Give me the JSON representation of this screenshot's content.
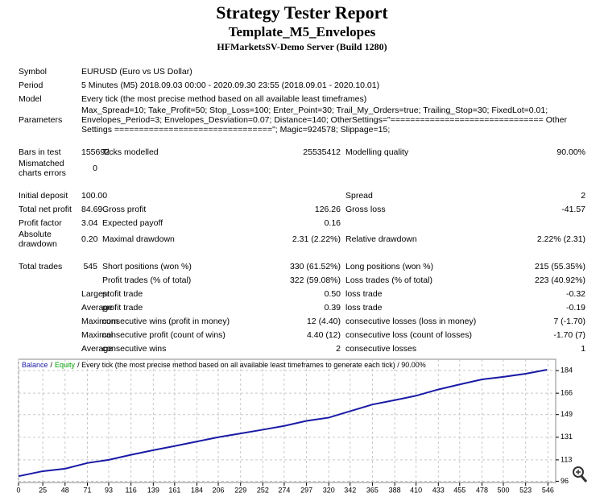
{
  "header": {
    "title": "Strategy Tester Report",
    "subtitle": "Template_M5_Envelopes",
    "server": "HFMarketsSV-Demo Server (Build 1280)"
  },
  "table": {
    "sections": [
      [
        [
          "Symbol",
          "EURUSD (Euro vs US Dollar)"
        ],
        [
          "Period",
          "5 Minutes (M5) 2018.09.03 00:00 - 2020.09.30 23:55 (2018.09.01 - 2020.10.01)"
        ],
        [
          "Model",
          "Every tick (the most precise method based on all available least timeframes)"
        ],
        [
          "Parameters",
          "Max_Spread=10; Take_Profit=50; Stop_Loss=100; Enter_Point=30; Trail_My_Orders=true; Trailing_Stop=30; FixedLot=0.01; Envelopes_Period=3; Envelopes_Desviation=0.07; Distance=140; OtherSettings=\"=============================== Other Settings ================================\"; Magic=924578; Slippage=15;"
        ]
      ],
      [
        [
          "Bars in test",
          "155692",
          "Ticks modelled",
          "25535412",
          "Modelling quality",
          "90.00%"
        ],
        [
          "Mismatched charts errors",
          "0",
          null,
          null,
          null,
          null
        ]
      ],
      [
        [
          "Initial deposit",
          "100.00",
          null,
          null,
          "Spread",
          "2"
        ],
        [
          "Total net profit",
          "84.69",
          "Gross profit",
          "126.26",
          "Gross loss",
          "-41.57"
        ],
        [
          "Profit factor",
          "3.04",
          "Expected payoff",
          "0.16",
          null,
          null
        ],
        [
          "Absolute drawdown",
          "0.20",
          "Maximal drawdown",
          "2.31 (2.22%)",
          "Relative drawdown",
          "2.22% (2.31)"
        ]
      ],
      [
        [
          "Total trades",
          "545",
          "Short positions (won %)",
          "330 (61.52%)",
          "Long positions (won %)",
          "215 (55.35%)"
        ],
        [
          null,
          null,
          "Profit trades (% of total)",
          "322 (59.08%)",
          "Loss trades (% of total)",
          "223 (40.92%)"
        ],
        [
          null,
          "Largest",
          "profit trade",
          "0.50",
          "loss trade",
          "-0.32"
        ],
        [
          null,
          "Average",
          "profit trade",
          "0.39",
          "loss trade",
          "-0.19"
        ],
        [
          null,
          "Maximum",
          "consecutive wins (profit in money)",
          "12 (4.40)",
          "consecutive losses (loss in money)",
          "7 (-1.70)"
        ],
        [
          null,
          "Maximal",
          "consecutive profit (count of wins)",
          "4.40 (12)",
          "consecutive loss (count of losses)",
          "-1.70 (7)"
        ],
        [
          null,
          "Average",
          "consecutive wins",
          "2",
          "consecutive losses",
          "1"
        ]
      ]
    ]
  },
  "chart_data": {
    "type": "line",
    "legend_separator": "/",
    "extra_legend": {
      "name": "Equity",
      "color": "#00a000"
    },
    "caption": "/ Every tick (the most precise method based on all available least timeframes to generate each tick) / 90.00%",
    "x": [
      0,
      25,
      48,
      71,
      93,
      116,
      139,
      161,
      184,
      206,
      229,
      252,
      274,
      297,
      320,
      342,
      365,
      388,
      410,
      433,
      455,
      478,
      500,
      523,
      545
    ],
    "series": [
      {
        "name": "Balance",
        "color": "#1a1aa6",
        "values": [
          100,
          104,
          106,
          110.5,
          113,
          117,
          120.7,
          124,
          127.6,
          131,
          134,
          137,
          140,
          144,
          146.6,
          151.7,
          157,
          160.5,
          164,
          169,
          173,
          177,
          179,
          181.5,
          184.69
        ]
      }
    ],
    "xlim": [
      0,
      554
    ],
    "ylim": [
      95,
      193
    ],
    "xticks": [
      0,
      25,
      48,
      71,
      93,
      116,
      139,
      161,
      184,
      206,
      229,
      252,
      274,
      297,
      320,
      342,
      365,
      388,
      410,
      433,
      455,
      478,
      500,
      523,
      546
    ],
    "yticks": [
      96,
      113,
      131,
      149,
      166,
      184
    ],
    "grid": true
  }
}
